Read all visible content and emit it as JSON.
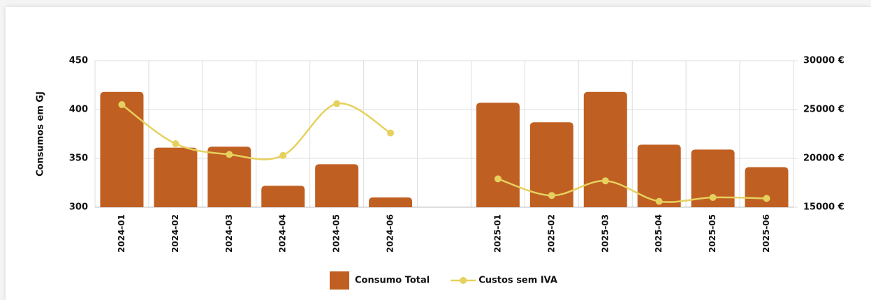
{
  "chart_data": {
    "type": "bar_line",
    "y_label": "Consumos em GJ",
    "categories": [
      "2024-01",
      "2024-02",
      "2024-03",
      "2024-04",
      "2024-05",
      "2024-06",
      null,
      "2025-01",
      "2025-02",
      "2025-03",
      "2025-04",
      "2025-05",
      "2025-06"
    ],
    "series": [
      {
        "name": "Consumo Total",
        "type": "bar",
        "color": "#c05f22",
        "values": [
          418,
          361,
          362,
          322,
          344,
          310,
          null,
          407,
          387,
          418,
          364,
          359,
          341
        ]
      },
      {
        "name": "Custos sem IVA",
        "type": "line",
        "axis": "y2",
        "color": "#e6d15e",
        "values": [
          25500,
          21500,
          20400,
          20300,
          25600,
          22600,
          null,
          17900,
          16200,
          17700,
          15600,
          16000,
          15900
        ]
      }
    ],
    "ylim": [
      300,
      450
    ],
    "yticks": [
      300,
      350,
      400,
      450
    ],
    "y2lim": [
      15000,
      30000
    ],
    "y2ticks": [
      {
        "value": 15000,
        "label": "15000 €"
      },
      {
        "value": 20000,
        "label": "20000 €"
      },
      {
        "value": 25000,
        "label": "25000 €"
      },
      {
        "value": 30000,
        "label": "30000 €"
      }
    ],
    "grid": true,
    "legend": "bottom"
  }
}
